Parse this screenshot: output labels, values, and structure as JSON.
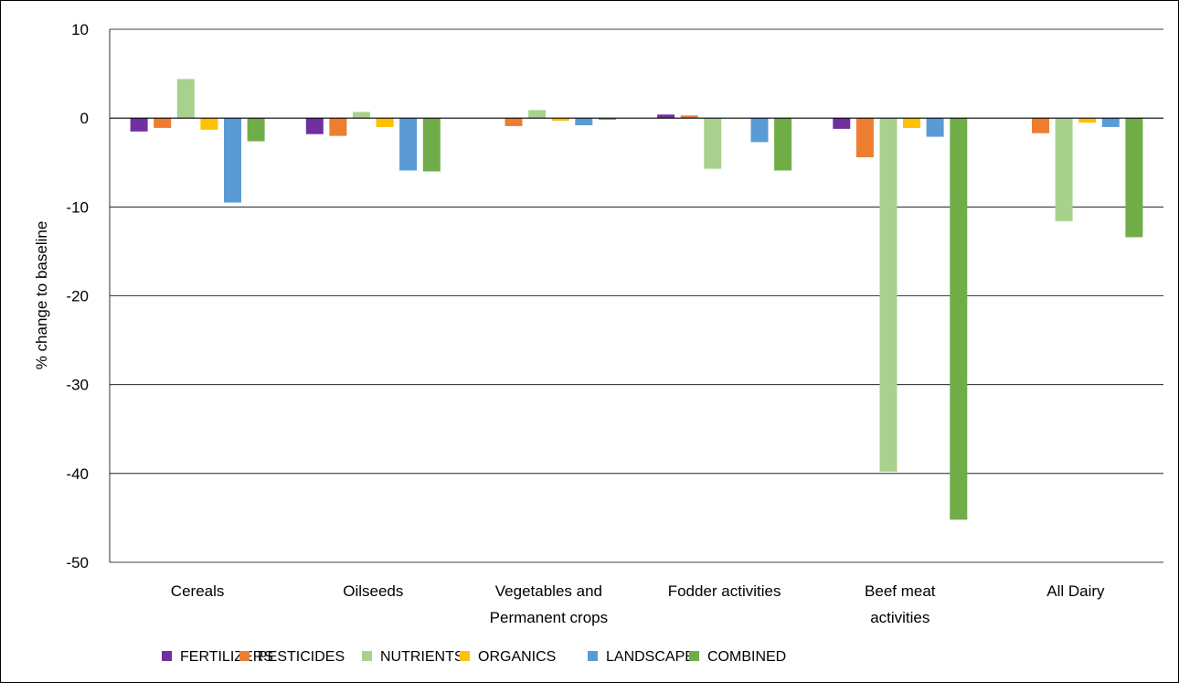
{
  "chart_data": {
    "type": "bar",
    "title": "",
    "xlabel": "",
    "ylabel": "% change to baseline",
    "ylim": [
      -50,
      10
    ],
    "yticks": [
      10,
      0,
      -10,
      -20,
      -30,
      -40,
      -50
    ],
    "grid": true,
    "legend_position": "bottom",
    "categories": [
      [
        "Cereals"
      ],
      [
        "Oilseeds"
      ],
      [
        "Vegetables and",
        "Permanent crops"
      ],
      [
        "Fodder activities"
      ],
      [
        "Beef meat",
        "activities"
      ],
      [
        "All Dairy"
      ]
    ],
    "series": [
      {
        "name": "FERTILIZERS",
        "color": "#7030A0",
        "values": [
          -1.5,
          -1.8,
          0,
          0.4,
          -1.2,
          0
        ]
      },
      {
        "name": "PESTICIDES",
        "color": "#ED7D31",
        "values": [
          -1.1,
          -2.0,
          -0.9,
          0.3,
          -4.4,
          -1.7
        ]
      },
      {
        "name": "NUTRIENTS",
        "color": "#A9D18E",
        "values": [
          4.4,
          0.7,
          0.9,
          -5.7,
          -39.8,
          -11.6
        ]
      },
      {
        "name": "ORGANICS",
        "color": "#FFC000",
        "values": [
          -1.3,
          -1.0,
          -0.3,
          0,
          -1.1,
          -0.5
        ]
      },
      {
        "name": "LANDSCAPE",
        "color": "#5B9BD5",
        "values": [
          -9.5,
          -5.9,
          -0.8,
          -2.7,
          -2.1,
          -1.0
        ]
      },
      {
        "name": "COMBINED",
        "color": "#70AD47",
        "values": [
          -2.6,
          -6.0,
          -0.2,
          -5.9,
          -45.2,
          -13.4
        ]
      }
    ]
  }
}
